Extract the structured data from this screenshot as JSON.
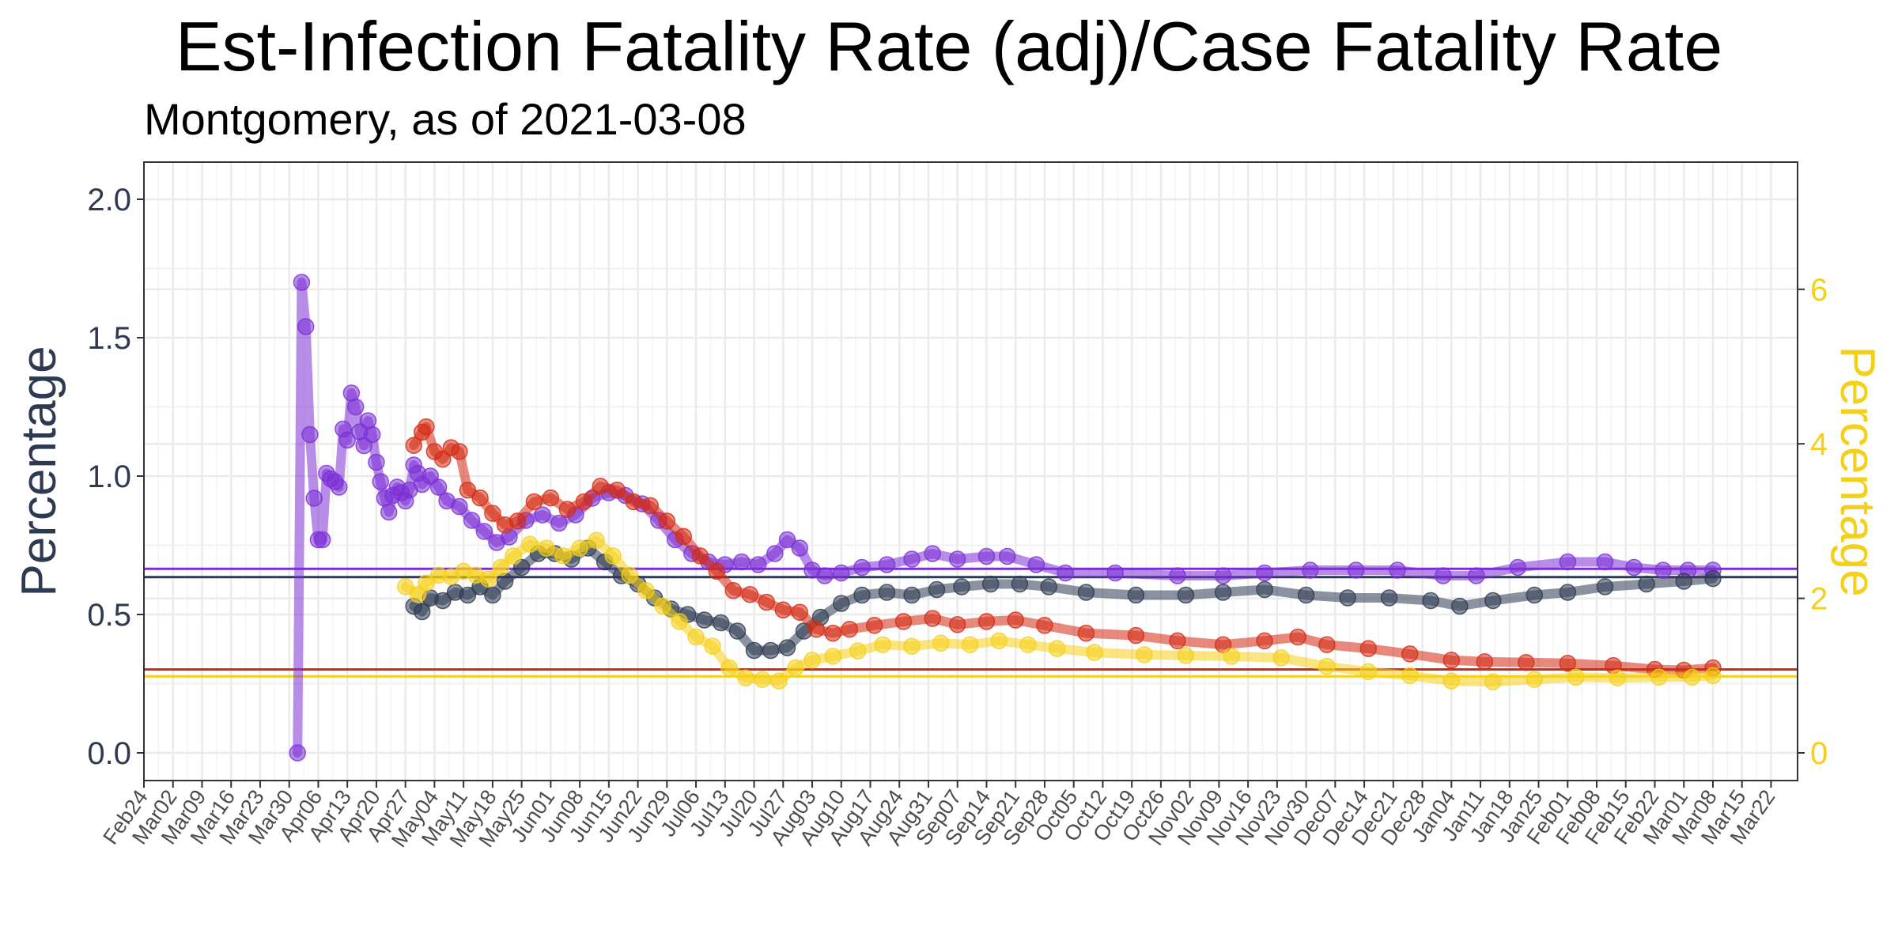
{
  "chart_data": {
    "type": "line",
    "title": "Est-Infection Fatality Rate (adj)/Case Fatality Rate",
    "subtitle": "Montgomery, as of 2021-03-08",
    "ylabel_left": "Percentage",
    "ylabel_right": "Percentage",
    "ylim_left": [
      -0.1,
      2.14
    ],
    "ylim_right": [
      -0.36,
      7.7
    ],
    "yticks_left": [
      "0.0",
      "0.5",
      "1.0",
      "1.5",
      "2.0"
    ],
    "yticks_right": [
      "0",
      "2",
      "4",
      "6"
    ],
    "xticks": [
      "Feb24",
      "Mar02",
      "Mar09",
      "Mar16",
      "Mar23",
      "Mar30",
      "Apr06",
      "Apr13",
      "Apr20",
      "Apr27",
      "May04",
      "May11",
      "May18",
      "May25",
      "Jun01",
      "Jun08",
      "Jun15",
      "Jun22",
      "Jun29",
      "Jul06",
      "Jul13",
      "Jul20",
      "Jul27",
      "Aug03",
      "Aug10",
      "Aug17",
      "Aug24",
      "Aug31",
      "Sep07",
      "Sep14",
      "Sep21",
      "Sep28",
      "Oct05",
      "Oct12",
      "Oct19",
      "Oct26",
      "Nov02",
      "Nov09",
      "Nov16",
      "Nov23",
      "Nov30",
      "Dec07",
      "Dec14",
      "Dec21",
      "Dec28",
      "Jan04",
      "Jan11",
      "Jan18",
      "Jan25",
      "Feb01",
      "Feb08",
      "Feb15",
      "Feb22",
      "Mar01",
      "Mar08",
      "Mar15",
      "Mar22"
    ],
    "grid": true,
    "colors": {
      "purple": "#7b2fd6",
      "navy": "#2e3a52",
      "red": "#d42a12",
      "yellow": "#f5d018",
      "axis_left": "#2e3a52",
      "axis_right": "#f5d018"
    },
    "series": [
      {
        "color": "purple",
        "axis": "left",
        "points": [
          [
            "2020-04-01",
            0.0
          ],
          [
            "2020-04-02",
            1.7
          ],
          [
            "2020-04-03",
            1.54
          ],
          [
            "2020-04-04",
            1.15
          ],
          [
            "2020-04-05",
            0.92
          ],
          [
            "2020-04-06",
            0.77
          ],
          [
            "2020-04-07",
            0.77
          ],
          [
            "2020-04-08",
            1.01
          ],
          [
            "2020-04-09",
            0.99
          ],
          [
            "2020-04-10",
            0.98
          ],
          [
            "2020-04-11",
            0.96
          ],
          [
            "2020-04-12",
            1.17
          ],
          [
            "2020-04-13",
            1.13
          ],
          [
            "2020-04-14",
            1.3
          ],
          [
            "2020-04-15",
            1.25
          ],
          [
            "2020-04-16",
            1.16
          ],
          [
            "2020-04-17",
            1.11
          ],
          [
            "2020-04-18",
            1.2
          ],
          [
            "2020-04-19",
            1.15
          ],
          [
            "2020-04-20",
            1.05
          ],
          [
            "2020-04-21",
            0.98
          ],
          [
            "2020-04-22",
            0.92
          ],
          [
            "2020-04-23",
            0.87
          ],
          [
            "2020-04-24",
            0.93
          ],
          [
            "2020-04-25",
            0.96
          ],
          [
            "2020-04-26",
            0.94
          ],
          [
            "2020-04-27",
            0.91
          ],
          [
            "2020-04-28",
            0.95
          ],
          [
            "2020-04-29",
            1.04
          ],
          [
            "2020-04-30",
            1.01
          ],
          [
            "2020-05-01",
            0.97
          ],
          [
            "2020-05-03",
            1.0
          ],
          [
            "2020-05-05",
            0.96
          ],
          [
            "2020-05-07",
            0.91
          ],
          [
            "2020-05-10",
            0.89
          ],
          [
            "2020-05-13",
            0.84
          ],
          [
            "2020-05-16",
            0.8
          ],
          [
            "2020-05-19",
            0.76
          ],
          [
            "2020-05-22",
            0.78
          ],
          [
            "2020-05-26",
            0.84
          ],
          [
            "2020-05-30",
            0.86
          ],
          [
            "2020-06-03",
            0.83
          ],
          [
            "2020-06-07",
            0.86
          ],
          [
            "2020-06-11",
            0.92
          ],
          [
            "2020-06-15",
            0.94
          ],
          [
            "2020-06-19",
            0.93
          ],
          [
            "2020-06-23",
            0.9
          ],
          [
            "2020-06-27",
            0.84
          ],
          [
            "2020-07-01",
            0.77
          ],
          [
            "2020-07-05",
            0.72
          ],
          [
            "2020-07-09",
            0.69
          ],
          [
            "2020-07-13",
            0.68
          ],
          [
            "2020-07-17",
            0.69
          ],
          [
            "2020-07-21",
            0.68
          ],
          [
            "2020-07-25",
            0.72
          ],
          [
            "2020-07-28",
            0.77
          ],
          [
            "2020-07-31",
            0.74
          ],
          [
            "2020-08-03",
            0.66
          ],
          [
            "2020-08-06",
            0.64
          ],
          [
            "2020-08-10",
            0.65
          ],
          [
            "2020-08-15",
            0.67
          ],
          [
            "2020-08-21",
            0.68
          ],
          [
            "2020-08-27",
            0.7
          ],
          [
            "2020-09-01",
            0.72
          ],
          [
            "2020-09-07",
            0.7
          ],
          [
            "2020-09-14",
            0.71
          ],
          [
            "2020-09-19",
            0.71
          ],
          [
            "2020-09-26",
            0.68
          ],
          [
            "2020-10-03",
            0.65
          ],
          [
            "2020-10-15",
            0.65
          ],
          [
            "2020-10-30",
            0.64
          ],
          [
            "2020-11-10",
            0.64
          ],
          [
            "2020-11-20",
            0.65
          ],
          [
            "2020-12-01",
            0.66
          ],
          [
            "2020-12-12",
            0.66
          ],
          [
            "2020-12-22",
            0.66
          ],
          [
            "2021-01-02",
            0.64
          ],
          [
            "2021-01-10",
            0.64
          ],
          [
            "2021-01-20",
            0.67
          ],
          [
            "2021-02-01",
            0.69
          ],
          [
            "2021-02-10",
            0.69
          ],
          [
            "2021-02-17",
            0.67
          ],
          [
            "2021-02-24",
            0.66
          ],
          [
            "2021-03-02",
            0.66
          ],
          [
            "2021-03-08",
            0.66
          ]
        ]
      },
      {
        "color": "navy",
        "axis": "left",
        "points": [
          [
            "2020-04-29",
            0.53
          ],
          [
            "2020-05-01",
            0.51
          ],
          [
            "2020-05-03",
            0.56
          ],
          [
            "2020-05-06",
            0.55
          ],
          [
            "2020-05-09",
            0.58
          ],
          [
            "2020-05-12",
            0.57
          ],
          [
            "2020-05-15",
            0.6
          ],
          [
            "2020-05-18",
            0.57
          ],
          [
            "2020-05-21",
            0.62
          ],
          [
            "2020-05-25",
            0.67
          ],
          [
            "2020-05-29",
            0.72
          ],
          [
            "2020-06-02",
            0.72
          ],
          [
            "2020-06-06",
            0.7
          ],
          [
            "2020-06-10",
            0.74
          ],
          [
            "2020-06-14",
            0.69
          ],
          [
            "2020-06-18",
            0.64
          ],
          [
            "2020-06-22",
            0.61
          ],
          [
            "2020-06-26",
            0.56
          ],
          [
            "2020-06-30",
            0.52
          ],
          [
            "2020-07-04",
            0.5
          ],
          [
            "2020-07-08",
            0.48
          ],
          [
            "2020-07-12",
            0.47
          ],
          [
            "2020-07-16",
            0.44
          ],
          [
            "2020-07-20",
            0.37
          ],
          [
            "2020-07-24",
            0.37
          ],
          [
            "2020-07-28",
            0.38
          ],
          [
            "2020-08-01",
            0.44
          ],
          [
            "2020-08-05",
            0.49
          ],
          [
            "2020-08-10",
            0.54
          ],
          [
            "2020-08-15",
            0.57
          ],
          [
            "2020-08-21",
            0.58
          ],
          [
            "2020-08-27",
            0.57
          ],
          [
            "2020-09-02",
            0.59
          ],
          [
            "2020-09-08",
            0.6
          ],
          [
            "2020-09-15",
            0.61
          ],
          [
            "2020-09-22",
            0.61
          ],
          [
            "2020-09-29",
            0.6
          ],
          [
            "2020-10-08",
            0.58
          ],
          [
            "2020-10-20",
            0.57
          ],
          [
            "2020-11-01",
            0.57
          ],
          [
            "2020-11-10",
            0.58
          ],
          [
            "2020-11-20",
            0.59
          ],
          [
            "2020-11-30",
            0.57
          ],
          [
            "2020-12-10",
            0.56
          ],
          [
            "2020-12-20",
            0.56
          ],
          [
            "2020-12-30",
            0.55
          ],
          [
            "2021-01-06",
            0.53
          ],
          [
            "2021-01-14",
            0.55
          ],
          [
            "2021-01-24",
            0.57
          ],
          [
            "2021-02-01",
            0.58
          ],
          [
            "2021-02-10",
            0.6
          ],
          [
            "2021-02-20",
            0.61
          ],
          [
            "2021-03-01",
            0.62
          ],
          [
            "2021-03-08",
            0.63
          ]
        ]
      },
      {
        "color": "red",
        "axis": "right",
        "points": [
          [
            "2020-04-29",
            3.98
          ],
          [
            "2020-05-01",
            4.15
          ],
          [
            "2020-05-02",
            4.22
          ],
          [
            "2020-05-04",
            3.9
          ],
          [
            "2020-05-06",
            3.8
          ],
          [
            "2020-05-08",
            3.95
          ],
          [
            "2020-05-10",
            3.9
          ],
          [
            "2020-05-12",
            3.4
          ],
          [
            "2020-05-15",
            3.3
          ],
          [
            "2020-05-18",
            3.1
          ],
          [
            "2020-05-21",
            2.95
          ],
          [
            "2020-05-24",
            3.0
          ],
          [
            "2020-05-28",
            3.25
          ],
          [
            "2020-06-01",
            3.3
          ],
          [
            "2020-06-05",
            3.15
          ],
          [
            "2020-06-09",
            3.25
          ],
          [
            "2020-06-13",
            3.45
          ],
          [
            "2020-06-17",
            3.4
          ],
          [
            "2020-06-21",
            3.25
          ],
          [
            "2020-06-25",
            3.2
          ],
          [
            "2020-06-29",
            3.0
          ],
          [
            "2020-07-03",
            2.8
          ],
          [
            "2020-07-07",
            2.55
          ],
          [
            "2020-07-11",
            2.35
          ],
          [
            "2020-07-15",
            2.1
          ],
          [
            "2020-07-19",
            2.05
          ],
          [
            "2020-07-23",
            1.95
          ],
          [
            "2020-07-27",
            1.85
          ],
          [
            "2020-07-31",
            1.82
          ],
          [
            "2020-08-04",
            1.6
          ],
          [
            "2020-08-08",
            1.55
          ],
          [
            "2020-08-12",
            1.6
          ],
          [
            "2020-08-18",
            1.65
          ],
          [
            "2020-08-25",
            1.7
          ],
          [
            "2020-09-01",
            1.74
          ],
          [
            "2020-09-07",
            1.66
          ],
          [
            "2020-09-14",
            1.7
          ],
          [
            "2020-09-21",
            1.72
          ],
          [
            "2020-09-28",
            1.65
          ],
          [
            "2020-10-08",
            1.55
          ],
          [
            "2020-10-20",
            1.52
          ],
          [
            "2020-10-30",
            1.45
          ],
          [
            "2020-11-10",
            1.4
          ],
          [
            "2020-11-20",
            1.45
          ],
          [
            "2020-11-28",
            1.5
          ],
          [
            "2020-12-05",
            1.4
          ],
          [
            "2020-12-15",
            1.35
          ],
          [
            "2020-12-25",
            1.28
          ],
          [
            "2021-01-04",
            1.2
          ],
          [
            "2021-01-12",
            1.18
          ],
          [
            "2021-01-22",
            1.17
          ],
          [
            "2021-02-01",
            1.16
          ],
          [
            "2021-02-12",
            1.13
          ],
          [
            "2021-02-22",
            1.08
          ],
          [
            "2021-03-01",
            1.07
          ],
          [
            "2021-03-08",
            1.1
          ]
        ]
      },
      {
        "color": "yellow",
        "axis": "right",
        "points": [
          [
            "2020-04-27",
            2.15
          ],
          [
            "2020-04-30",
            2.05
          ],
          [
            "2020-05-02",
            2.2
          ],
          [
            "2020-05-05",
            2.3
          ],
          [
            "2020-05-08",
            2.28
          ],
          [
            "2020-05-11",
            2.35
          ],
          [
            "2020-05-14",
            2.3
          ],
          [
            "2020-05-17",
            2.25
          ],
          [
            "2020-05-20",
            2.4
          ],
          [
            "2020-05-23",
            2.55
          ],
          [
            "2020-05-27",
            2.7
          ],
          [
            "2020-05-31",
            2.65
          ],
          [
            "2020-06-04",
            2.55
          ],
          [
            "2020-06-08",
            2.65
          ],
          [
            "2020-06-12",
            2.75
          ],
          [
            "2020-06-16",
            2.55
          ],
          [
            "2020-06-20",
            2.3
          ],
          [
            "2020-06-24",
            2.1
          ],
          [
            "2020-06-28",
            1.9
          ],
          [
            "2020-07-02",
            1.7
          ],
          [
            "2020-07-06",
            1.5
          ],
          [
            "2020-07-10",
            1.38
          ],
          [
            "2020-07-14",
            1.1
          ],
          [
            "2020-07-18",
            0.97
          ],
          [
            "2020-07-22",
            0.95
          ],
          [
            "2020-07-26",
            0.93
          ],
          [
            "2020-07-30",
            1.1
          ],
          [
            "2020-08-03",
            1.2
          ],
          [
            "2020-08-08",
            1.25
          ],
          [
            "2020-08-14",
            1.32
          ],
          [
            "2020-08-20",
            1.4
          ],
          [
            "2020-08-27",
            1.38
          ],
          [
            "2020-09-03",
            1.42
          ],
          [
            "2020-09-10",
            1.4
          ],
          [
            "2020-09-17",
            1.45
          ],
          [
            "2020-09-24",
            1.4
          ],
          [
            "2020-10-01",
            1.35
          ],
          [
            "2020-10-10",
            1.3
          ],
          [
            "2020-10-22",
            1.27
          ],
          [
            "2020-11-01",
            1.26
          ],
          [
            "2020-11-12",
            1.25
          ],
          [
            "2020-11-24",
            1.23
          ],
          [
            "2020-12-05",
            1.12
          ],
          [
            "2020-12-15",
            1.05
          ],
          [
            "2020-12-25",
            1.0
          ],
          [
            "2021-01-04",
            0.93
          ],
          [
            "2021-01-14",
            0.92
          ],
          [
            "2021-01-24",
            0.95
          ],
          [
            "2021-02-03",
            0.98
          ],
          [
            "2021-02-13",
            0.97
          ],
          [
            "2021-02-23",
            0.98
          ],
          [
            "2021-03-03",
            0.98
          ],
          [
            "2021-03-08",
            1.0
          ]
        ]
      }
    ],
    "reference_lines": [
      {
        "color": "purple",
        "axis": "left",
        "value": 0.665
      },
      {
        "color": "navy",
        "axis": "left",
        "value": 0.635
      },
      {
        "color": "red",
        "axis": "right",
        "value": 1.08
      },
      {
        "color": "yellow",
        "axis": "right",
        "value": 0.99
      }
    ]
  }
}
